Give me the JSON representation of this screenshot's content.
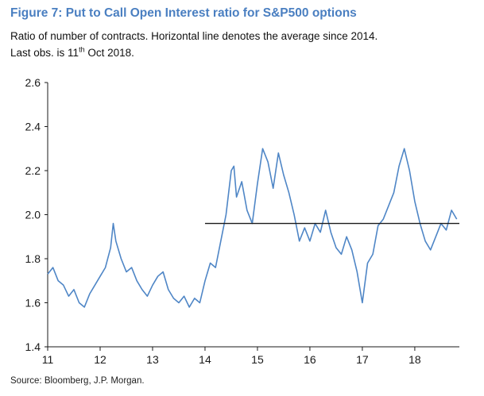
{
  "figure": {
    "title": "Figure 7: Put to Call Open Interest ratio for S&P500 options",
    "subtitle_line1": "Ratio of number of contracts. Horizontal line denotes the average since 2014.",
    "subtitle_line2_prefix": "Last obs. is 11",
    "subtitle_line2_sup": "th",
    "subtitle_line2_suffix": " Oct 2018.",
    "source": "Source:  Bloomberg, J.P. Morgan."
  },
  "colors": {
    "title": "#4a7fc1",
    "series": "#4f86c6",
    "average_line": "#1a1a1a",
    "axis": "#1a1a1a"
  },
  "chart_data": {
    "type": "line",
    "title": "Put to Call Open Interest ratio for S&P500 options",
    "xlabel": "",
    "ylabel": "",
    "xlim": [
      11,
      18.85
    ],
    "ylim": [
      1.4,
      2.6
    ],
    "x_tick_labels": [
      "11",
      "12",
      "13",
      "14",
      "15",
      "16",
      "17",
      "18"
    ],
    "x_tick_values": [
      11,
      12,
      13,
      14,
      15,
      16,
      17,
      18
    ],
    "y_tick_labels": [
      "1.4",
      "1.6",
      "1.8",
      "2.0",
      "2.2",
      "2.4",
      "2.6"
    ],
    "y_tick_values": [
      1.4,
      1.6,
      1.8,
      2.0,
      2.2,
      2.4,
      2.6
    ],
    "grid": false,
    "series": [
      {
        "name": "Put/Call open interest ratio",
        "x": [
          11.0,
          11.1,
          11.2,
          11.3,
          11.4,
          11.5,
          11.6,
          11.7,
          11.8,
          11.9,
          12.0,
          12.1,
          12.2,
          12.25,
          12.3,
          12.4,
          12.5,
          12.6,
          12.7,
          12.8,
          12.9,
          13.0,
          13.1,
          13.2,
          13.3,
          13.4,
          13.5,
          13.6,
          13.7,
          13.8,
          13.9,
          14.0,
          14.1,
          14.2,
          14.3,
          14.4,
          14.5,
          14.55,
          14.6,
          14.7,
          14.8,
          14.9,
          15.0,
          15.1,
          15.2,
          15.3,
          15.4,
          15.5,
          15.6,
          15.7,
          15.8,
          15.9,
          16.0,
          16.1,
          16.2,
          16.3,
          16.4,
          16.5,
          16.6,
          16.7,
          16.8,
          16.9,
          17.0,
          17.1,
          17.2,
          17.3,
          17.4,
          17.5,
          17.6,
          17.7,
          17.8,
          17.9,
          18.0,
          18.1,
          18.2,
          18.3,
          18.4,
          18.5,
          18.6,
          18.7,
          18.8
        ],
        "y": [
          1.73,
          1.76,
          1.7,
          1.68,
          1.63,
          1.66,
          1.6,
          1.58,
          1.64,
          1.68,
          1.72,
          1.76,
          1.85,
          1.96,
          1.88,
          1.8,
          1.74,
          1.76,
          1.7,
          1.66,
          1.63,
          1.68,
          1.72,
          1.74,
          1.66,
          1.62,
          1.6,
          1.63,
          1.58,
          1.62,
          1.6,
          1.7,
          1.78,
          1.76,
          1.88,
          2.0,
          2.2,
          2.22,
          2.08,
          2.15,
          2.02,
          1.96,
          2.14,
          2.3,
          2.24,
          2.12,
          2.28,
          2.18,
          2.1,
          2.0,
          1.88,
          1.94,
          1.88,
          1.96,
          1.92,
          2.02,
          1.92,
          1.85,
          1.82,
          1.9,
          1.84,
          1.74,
          1.6,
          1.78,
          1.82,
          1.95,
          1.98,
          2.04,
          2.1,
          2.22,
          2.3,
          2.2,
          2.06,
          1.96,
          1.88,
          1.84,
          1.9,
          1.96,
          1.93,
          2.02,
          1.98
        ]
      }
    ],
    "average_line": {
      "label": "Average since 2014",
      "value": 1.96,
      "x_start": 14,
      "x_end": 18.85
    }
  }
}
